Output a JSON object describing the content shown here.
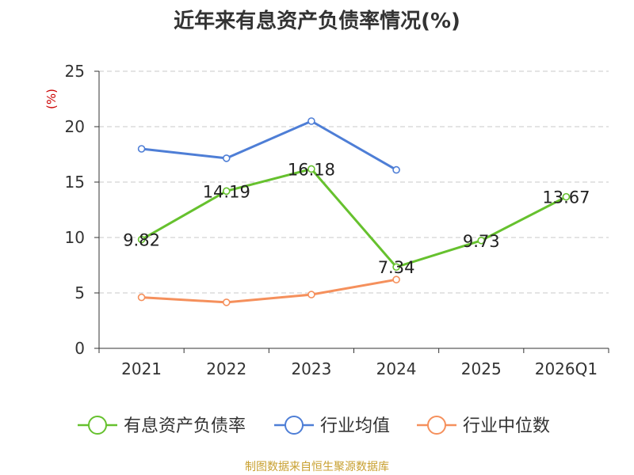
{
  "chart_data": {
    "type": "line",
    "title": "近年来有息资产负债率情况(%)",
    "ylabel": "(%)",
    "xlabel": "",
    "categories": [
      "2021",
      "2022",
      "2023",
      "2024",
      "2025",
      "2026Q1"
    ],
    "ylim": [
      0,
      25
    ],
    "yticks": [
      0,
      5,
      10,
      15,
      20,
      25
    ],
    "grid": true,
    "legend_position": "bottom",
    "series": [
      {
        "name": "有息资产负债率",
        "color": "#66c12e",
        "values": [
          9.82,
          14.19,
          16.18,
          7.34,
          9.73,
          13.67
        ],
        "labels": [
          "9.82",
          "14.19",
          "16.18",
          "7.34",
          "9.73",
          "13.67"
        ]
      },
      {
        "name": "行业均值",
        "color": "#4e7ed6",
        "values": [
          18.0,
          17.15,
          20.5,
          16.1,
          null,
          null
        ]
      },
      {
        "name": "行业中位数",
        "color": "#f5905c",
        "values": [
          4.6,
          4.15,
          4.85,
          6.2,
          null,
          null
        ]
      }
    ],
    "source": "制图数据来自恒生聚源数据库"
  }
}
